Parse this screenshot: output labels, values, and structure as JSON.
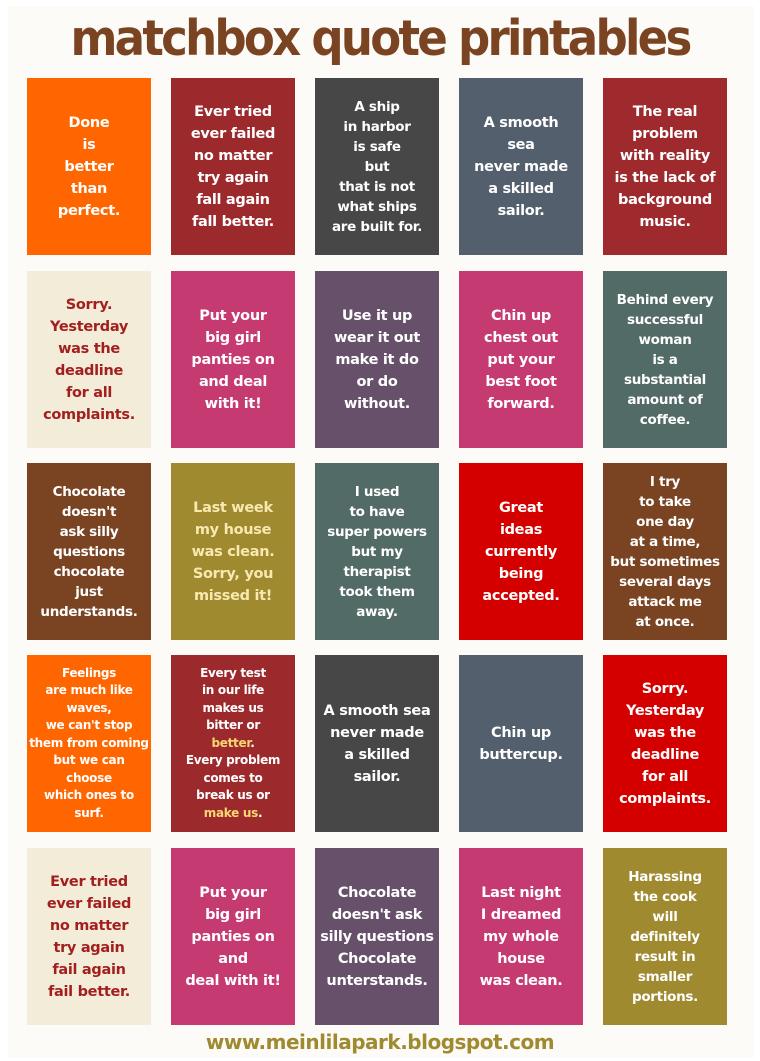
{
  "title": "matchbox quote printables",
  "footer": "www.meinlilapark.blogspot.com",
  "cards": [
    {
      "bg": "#ff6600",
      "fg": "#ffffff",
      "lines": [
        "Done",
        "is",
        "better",
        "than",
        "perfect."
      ]
    },
    {
      "bg": "#9c2a2d",
      "fg": "#ffffff",
      "lines": [
        "Ever tried",
        "ever failed",
        "no matter",
        "try again",
        "fall again",
        "fall better."
      ]
    },
    {
      "bg": "#474747",
      "fg": "#ffffff",
      "lines": [
        "A ship",
        "in harbor",
        "is safe",
        "but",
        "that is not",
        "what ships",
        "are built for."
      ]
    },
    {
      "bg": "#545f6e",
      "fg": "#ffffff",
      "lines": [
        "A smooth",
        "sea",
        "never made",
        "a skilled",
        "sailor."
      ]
    },
    {
      "bg": "#9e2a2e",
      "fg": "#ffffff",
      "lines": [
        "The real",
        "problem",
        "with reality",
        "is the lack of",
        "background",
        "music."
      ]
    },
    {
      "bg": "#f3ecd8",
      "fg": "#a31f1f",
      "lines": [
        "Sorry.",
        "Yesterday",
        "was the",
        "deadline",
        "for all",
        "complaints."
      ]
    },
    {
      "bg": "#c63a72",
      "fg": "#ffffff",
      "lines": [
        "Put your",
        "big girl",
        "panties on",
        "and deal",
        "with it!"
      ]
    },
    {
      "bg": "#66506a",
      "fg": "#ffffff",
      "lines": [
        "Use it up",
        "wear it out",
        "make it do",
        "or do",
        "without."
      ]
    },
    {
      "bg": "#c63a72",
      "fg": "#ffffff",
      "lines": [
        "Chin up",
        "chest out",
        "put your",
        "best foot",
        "forward."
      ]
    },
    {
      "bg": "#526b66",
      "fg": "#ffffff",
      "lines": [
        "Behind every",
        "successful",
        "woman",
        "is a",
        "substantial",
        "amount of",
        "coffee."
      ]
    },
    {
      "bg": "#7a4322",
      "fg": "#ffffff",
      "lines": [
        "Chocolate",
        "doesn't",
        "ask silly",
        "questions",
        "chocolate",
        "just",
        "understands."
      ]
    },
    {
      "bg": "#a08a30",
      "fg": "#f7e9b0",
      "lines": [
        "Last week",
        "my house",
        "was clean.",
        "Sorry, you",
        "missed it!"
      ]
    },
    {
      "bg": "#526b66",
      "fg": "#ffffff",
      "lines": [
        "I used",
        "to have",
        "super powers",
        "but my",
        "therapist",
        "took them",
        "away."
      ]
    },
    {
      "bg": "#d40000",
      "fg": "#ffffff",
      "lines": [
        "Great",
        "ideas",
        "currently",
        "being",
        "accepted."
      ]
    },
    {
      "bg": "#7a4322",
      "fg": "#ffffff",
      "lines": [
        "I try",
        "to take",
        "one day",
        "at a time,",
        "but sometimes",
        "several days",
        "attack me",
        "at once."
      ]
    },
    {
      "bg": "#ff6600",
      "fg": "#ffffff",
      "size": "small",
      "lines": [
        "Feelings",
        "are much like",
        "waves,",
        "we can't stop",
        "them from coming",
        "but we can",
        "choose",
        "which ones to",
        "surf."
      ]
    },
    {
      "bg": "#9c2a2d",
      "fg": "#ffffff",
      "size": "small",
      "lines": [
        "Every test",
        "in our life",
        "makes us",
        "bitter or",
        [
          {
            "t": "better",
            "hl": true
          },
          {
            "t": "."
          }
        ],
        "Every problem",
        "comes to",
        "break us or",
        [
          {
            "t": "make us",
            "hl": true
          },
          {
            "t": "."
          }
        ]
      ]
    },
    {
      "bg": "#474747",
      "fg": "#ffffff",
      "lines": [
        "A smooth sea",
        "never made",
        "a skilled",
        "sailor."
      ]
    },
    {
      "bg": "#545f6e",
      "fg": "#ffffff",
      "lines": [
        "Chin up",
        "buttercup."
      ]
    },
    {
      "bg": "#d40000",
      "fg": "#ffffff",
      "lines": [
        "Sorry.",
        "Yesterday",
        "was the",
        "deadline",
        "for all",
        "complaints."
      ]
    },
    {
      "bg": "#f3ecd8",
      "fg": "#a31f1f",
      "lines": [
        "Ever tried",
        "ever failed",
        "no matter",
        "try again",
        "fail again",
        "fail better."
      ]
    },
    {
      "bg": "#c63a72",
      "fg": "#ffffff",
      "lines": [
        "Put your",
        "big girl",
        "panties on",
        "and",
        "deal with it!"
      ]
    },
    {
      "bg": "#66506a",
      "fg": "#ffffff",
      "lines": [
        "Chocolate",
        "doesn't ask",
        "silly questions",
        "Chocolate",
        "unterstands."
      ]
    },
    {
      "bg": "#c63a72",
      "fg": "#ffffff",
      "lines": [
        "Last night",
        "I dreamed",
        "my whole",
        "house",
        "was clean."
      ]
    },
    {
      "bg": "#a08a30",
      "fg": "#ffffff",
      "lines": [
        "Harassing",
        "the cook",
        "will",
        "definitely",
        "result in",
        "smaller",
        "portions."
      ]
    }
  ]
}
